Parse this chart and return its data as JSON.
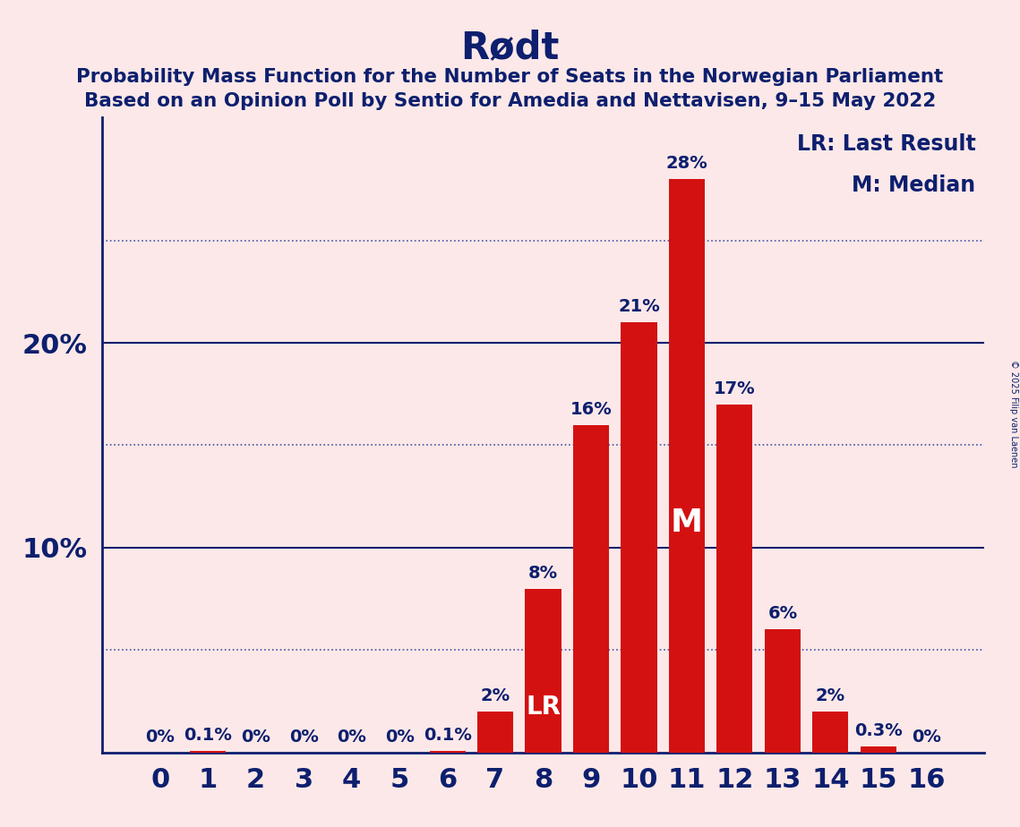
{
  "title": "Rødt",
  "subtitle1": "Probability Mass Function for the Number of Seats in the Norwegian Parliament",
  "subtitle2": "Based on an Opinion Poll by Sentio for Amedia and Nettavisen, 9–15 May 2022",
  "copyright": "© 2025 Filip van Laenen",
  "categories": [
    0,
    1,
    2,
    3,
    4,
    5,
    6,
    7,
    8,
    9,
    10,
    11,
    12,
    13,
    14,
    15,
    16
  ],
  "values": [
    0.0,
    0.1,
    0.0,
    0.0,
    0.0,
    0.0,
    0.1,
    2.0,
    8.0,
    16.0,
    21.0,
    28.0,
    17.0,
    6.0,
    2.0,
    0.3,
    0.0
  ],
  "labels": [
    "0%",
    "0.1%",
    "0%",
    "0%",
    "0%",
    "0%",
    "0.1%",
    "2%",
    "8%",
    "16%",
    "21%",
    "28%",
    "17%",
    "6%",
    "2%",
    "0.3%",
    "0%"
  ],
  "bar_color": "#d41111",
  "background_color": "#fce8e8",
  "title_color": "#0d1f6e",
  "axis_color": "#0d1f6e",
  "label_color": "#0d1f6e",
  "bar_label_color_inside": "#ffffff",
  "solid_grid_values": [
    10,
    20
  ],
  "dotted_grid_values": [
    5,
    15,
    25
  ],
  "solid_grid_color": "#0d1f6e",
  "dotted_grid_color": "#4455aa",
  "ylim": [
    0,
    31
  ],
  "last_result_seat": 8,
  "median_seat": 11,
  "lr_label": "LR",
  "m_label": "M",
  "legend_lr": "LR: Last Result",
  "legend_m": "M: Median",
  "title_fontsize": 30,
  "subtitle_fontsize": 15.5,
  "axis_label_fontsize": 22,
  "bar_label_fontsize": 14,
  "legend_fontsize": 17,
  "ytick_fontsize": 22,
  "lr_fontsize": 20,
  "m_fontsize": 26
}
